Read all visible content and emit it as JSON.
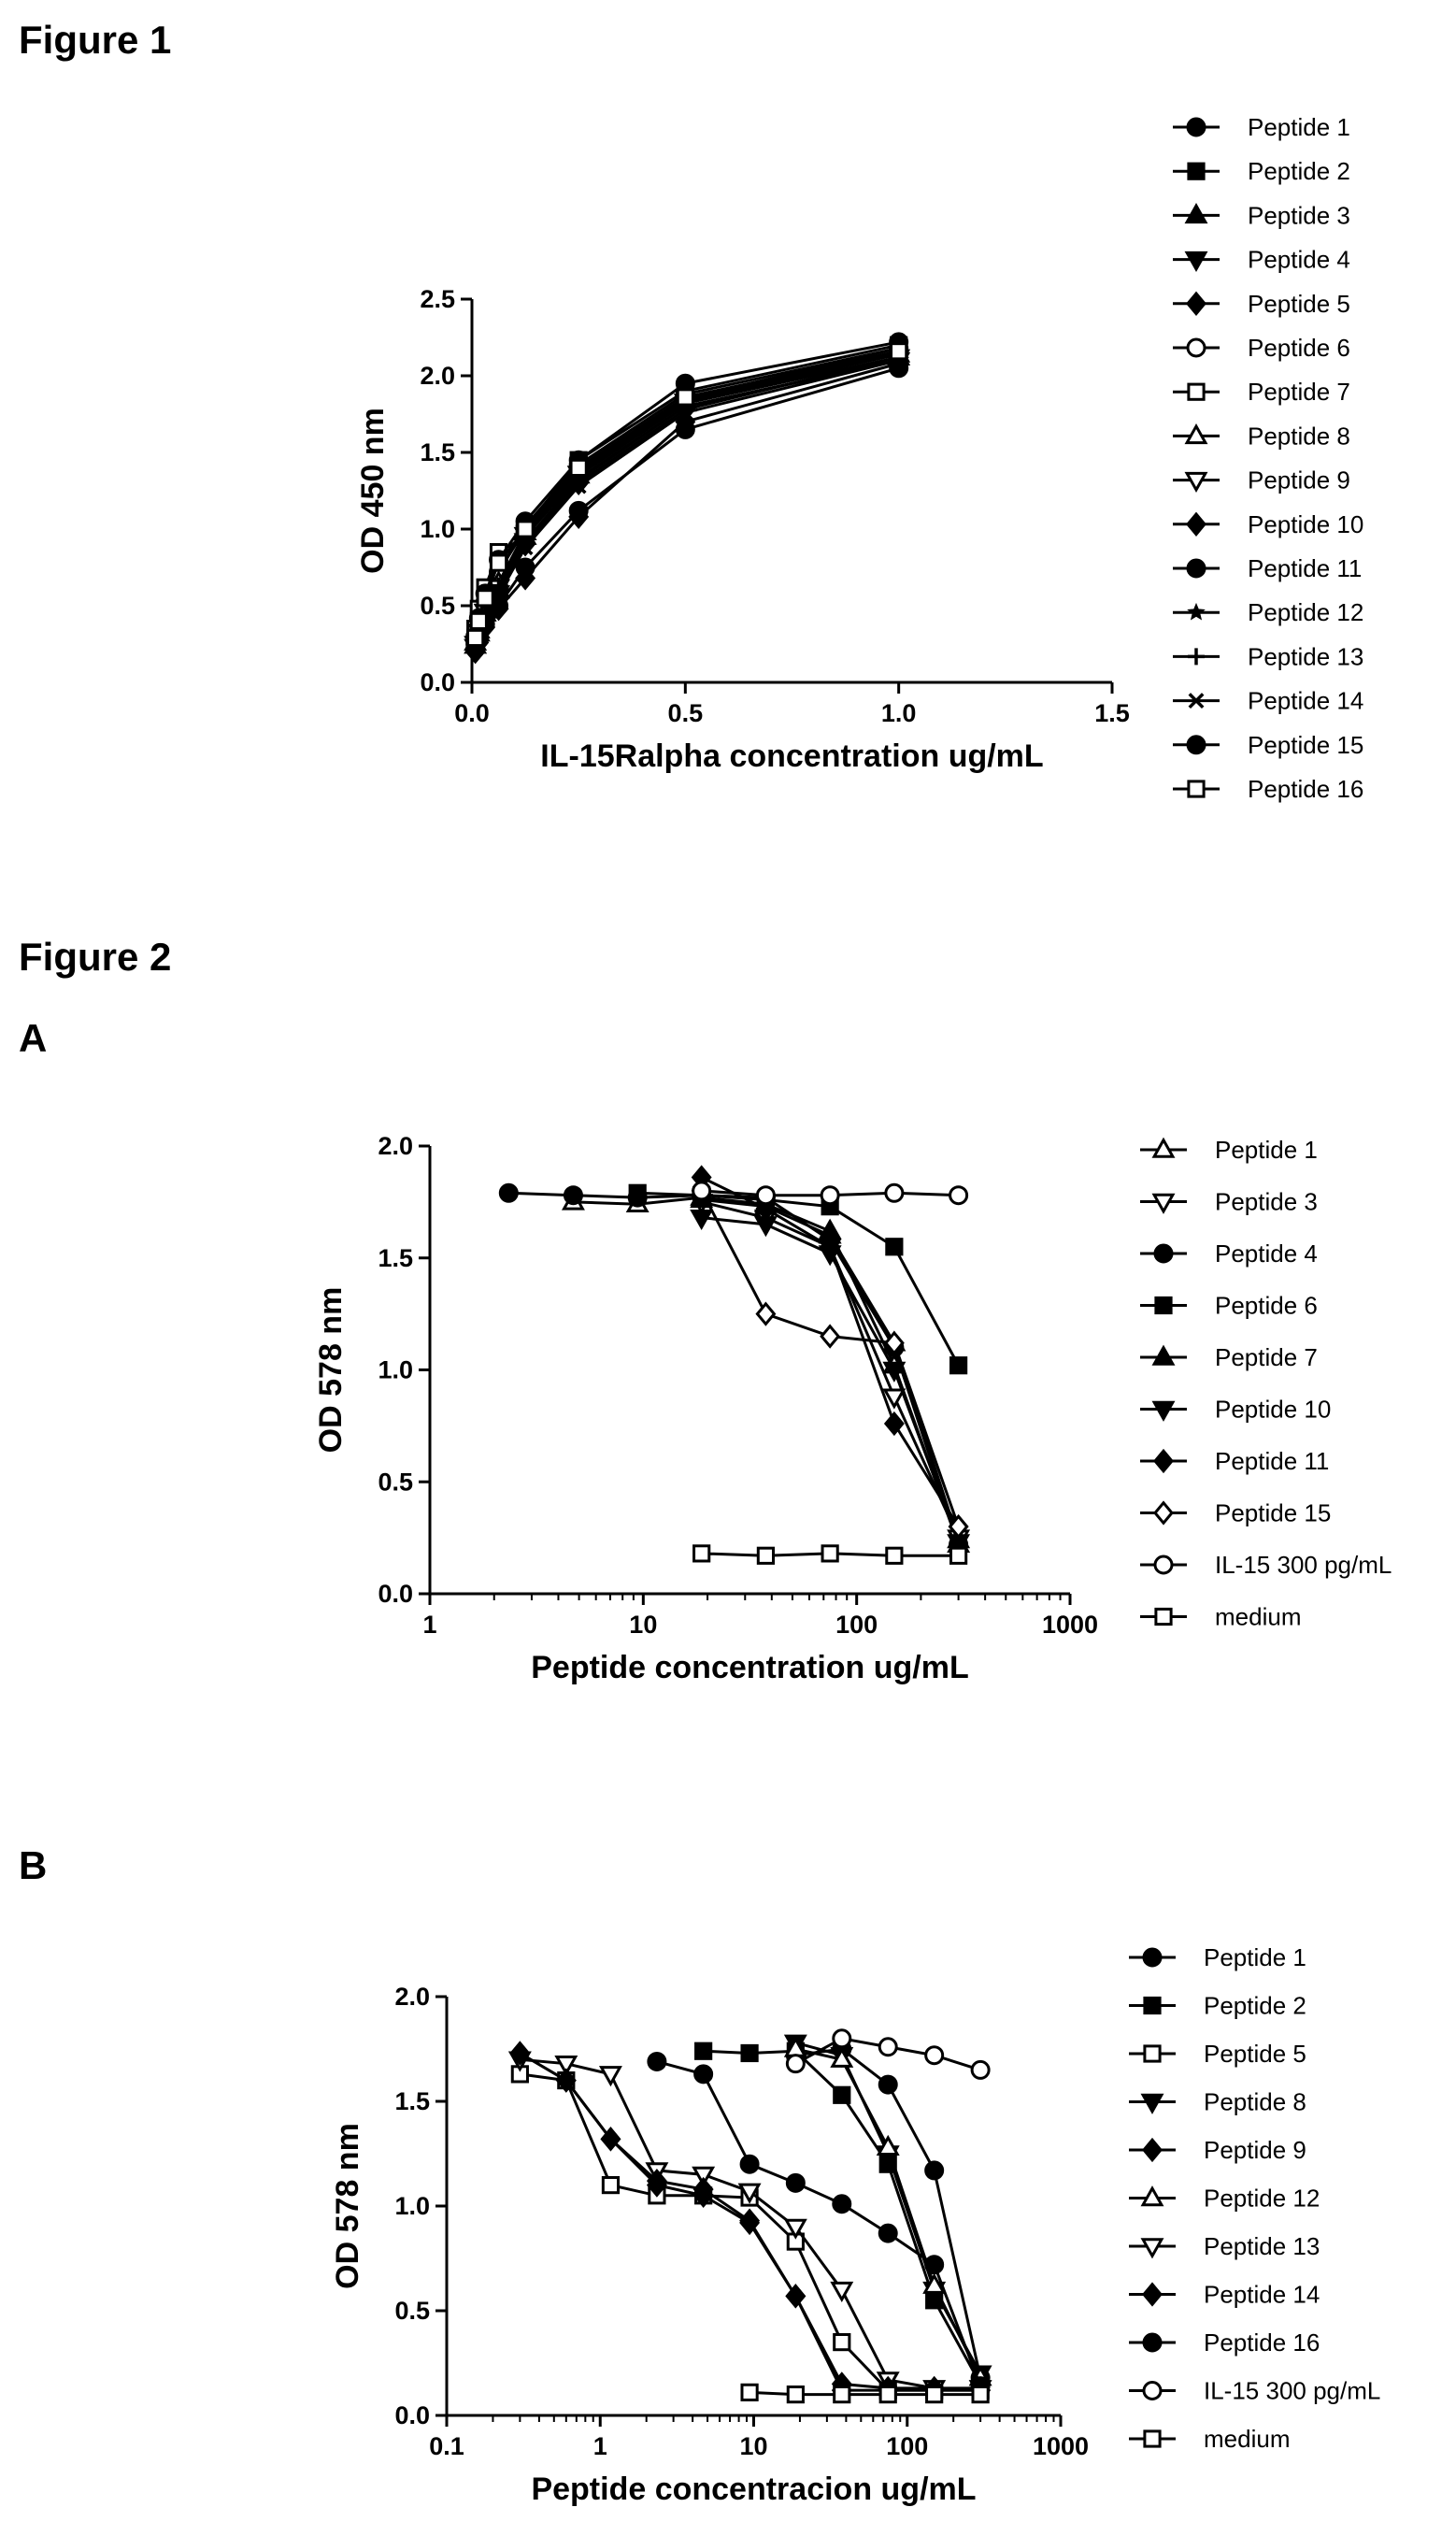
{
  "headings": {
    "figure1": "Figure 1",
    "figure2": "Figure 2",
    "panelA": "A",
    "panelB": "B"
  },
  "chart_data": [
    {
      "id": "figure-1",
      "type": "line",
      "xlabel": "IL-15Ralpha concentration ug/mL",
      "ylabel": "OD 450 nm",
      "xscale": "linear",
      "xlim": [
        0,
        1.5
      ],
      "ylim": [
        0,
        2.5
      ],
      "xticks": [
        0,
        0.5,
        1,
        1.5
      ],
      "xtick_labels": [
        "0.0",
        "0.5",
        "1.0",
        "1.5"
      ],
      "yticks": [
        0,
        0.5,
        1,
        1.5,
        2,
        2.5
      ],
      "ytick_labels": [
        "0.0",
        "0.5",
        "1.0",
        "1.5",
        "2.0",
        "2.5"
      ],
      "grid": false,
      "legend_position": "right",
      "x": [
        0.008,
        0.016,
        0.031,
        0.0625,
        0.125,
        0.25,
        0.5,
        1
      ],
      "series": [
        {
          "name": "Peptide 1",
          "marker": "circle-filled",
          "values": [
            0.25,
            0.33,
            0.45,
            0.62,
            0.98,
            1.38,
            1.85,
            2.15
          ]
        },
        {
          "name": "Peptide 2",
          "marker": "square-filled",
          "values": [
            0.27,
            0.35,
            0.5,
            0.72,
            1.0,
            1.45,
            1.9,
            2.2
          ]
        },
        {
          "name": "Peptide 3",
          "marker": "triangle-up-filled",
          "values": [
            0.24,
            0.32,
            0.45,
            0.6,
            0.95,
            1.35,
            1.82,
            2.12
          ]
        },
        {
          "name": "Peptide 4",
          "marker": "triangle-down-filled",
          "values": [
            0.23,
            0.31,
            0.43,
            0.58,
            0.92,
            1.32,
            1.8,
            2.1
          ]
        },
        {
          "name": "Peptide 5",
          "marker": "diamond-filled",
          "values": [
            0.22,
            0.3,
            0.42,
            0.57,
            0.9,
            1.3,
            1.78,
            2.12
          ]
        },
        {
          "name": "Peptide 6",
          "marker": "circle-open",
          "values": [
            0.28,
            0.38,
            0.52,
            0.72,
            1.02,
            1.42,
            1.88,
            2.18
          ]
        },
        {
          "name": "Peptide 7",
          "marker": "square-open",
          "values": [
            0.35,
            0.48,
            0.62,
            0.85,
            0.95,
            1.38,
            1.85,
            2.18
          ]
        },
        {
          "name": "Peptide 8",
          "marker": "triangle-up-open",
          "values": [
            0.26,
            0.34,
            0.47,
            0.65,
            0.98,
            1.4,
            1.84,
            2.14
          ]
        },
        {
          "name": "Peptide 9",
          "marker": "triangle-down-open",
          "values": [
            0.25,
            0.33,
            0.46,
            0.62,
            0.96,
            1.36,
            1.83,
            2.12
          ]
        },
        {
          "name": "Peptide 10",
          "marker": "diamond-filled",
          "values": [
            0.2,
            0.26,
            0.36,
            0.48,
            0.68,
            1.08,
            1.7,
            2.08
          ]
        },
        {
          "name": "Peptide 11",
          "marker": "circle-filled",
          "values": [
            0.22,
            0.28,
            0.38,
            0.5,
            0.75,
            1.12,
            1.65,
            2.05
          ]
        },
        {
          "name": "Peptide 12",
          "marker": "star",
          "values": [
            0.24,
            0.32,
            0.44,
            0.6,
            0.92,
            1.33,
            1.8,
            2.1
          ]
        },
        {
          "name": "Peptide 13",
          "marker": "plus",
          "values": [
            0.26,
            0.34,
            0.46,
            0.63,
            0.96,
            1.37,
            1.84,
            2.14
          ]
        },
        {
          "name": "Peptide 14",
          "marker": "cross",
          "values": [
            0.23,
            0.31,
            0.42,
            0.57,
            0.88,
            1.28,
            1.76,
            2.1
          ]
        },
        {
          "name": "Peptide 15",
          "marker": "circle-filled",
          "values": [
            0.3,
            0.42,
            0.58,
            0.8,
            1.05,
            1.45,
            1.95,
            2.22
          ]
        },
        {
          "name": "Peptide 16",
          "marker": "square-open",
          "values": [
            0.29,
            0.4,
            0.55,
            0.78,
            1.0,
            1.4,
            1.86,
            2.16
          ]
        }
      ]
    },
    {
      "id": "figure-2a",
      "type": "line",
      "xlabel": "Peptide concentration ug/mL",
      "ylabel": "OD 578 nm",
      "xscale": "log",
      "xlim": [
        1,
        1000
      ],
      "ylim": [
        0,
        2.0
      ],
      "xticks": [
        1,
        10,
        100,
        1000
      ],
      "xtick_labels": [
        "1",
        "10",
        "100",
        "1000"
      ],
      "yticks": [
        0,
        0.5,
        1,
        1.5,
        2
      ],
      "ytick_labels": [
        "0.0",
        "0.5",
        "1.0",
        "1.5",
        "2.0"
      ],
      "grid": false,
      "legend_position": "right",
      "series": [
        {
          "name": "Peptide 1",
          "marker": "triangle-up-open",
          "x": [
            4.7,
            9.4,
            18.75,
            37.5,
            75,
            150,
            300
          ],
          "values": [
            1.75,
            1.74,
            1.77,
            1.74,
            1.62,
            1.02,
            0.22
          ]
        },
        {
          "name": "Peptide 3",
          "marker": "triangle-down-open",
          "x": [
            18.75,
            37.5,
            75,
            150,
            300
          ],
          "values": [
            1.75,
            1.68,
            1.55,
            0.88,
            0.25
          ]
        },
        {
          "name": "Peptide 4",
          "marker": "circle-filled",
          "x": [
            2.34,
            4.7,
            9.4,
            18.75,
            37.5,
            75,
            150,
            300
          ],
          "values": [
            1.79,
            1.78,
            1.77,
            1.78,
            1.77,
            1.58,
            1.1,
            0.22
          ]
        },
        {
          "name": "Peptide 6",
          "marker": "square-filled",
          "x": [
            9.4,
            18.75,
            37.5,
            75,
            150,
            300
          ],
          "values": [
            1.79,
            1.78,
            1.76,
            1.73,
            1.55,
            1.02
          ]
        },
        {
          "name": "Peptide 7",
          "marker": "triangle-up-filled",
          "x": [
            18.75,
            37.5,
            75,
            150,
            300
          ],
          "values": [
            1.76,
            1.73,
            1.6,
            1.12,
            0.24
          ]
        },
        {
          "name": "Peptide 10",
          "marker": "triangle-down-filled",
          "x": [
            18.75,
            37.5,
            75,
            150,
            300
          ],
          "values": [
            1.68,
            1.65,
            1.52,
            1.0,
            0.23
          ]
        },
        {
          "name": "Peptide 11",
          "marker": "diamond-filled",
          "x": [
            18.75,
            37.5,
            75,
            150,
            300
          ],
          "values": [
            1.86,
            1.72,
            1.55,
            0.76,
            0.3
          ]
        },
        {
          "name": "Peptide 15",
          "marker": "diamond-open",
          "x": [
            18.75,
            37.5,
            75,
            150,
            300
          ],
          "values": [
            1.8,
            1.25,
            1.15,
            1.12,
            0.3
          ]
        },
        {
          "name": "IL-15 300 pg/mL",
          "marker": "circle-open",
          "x": [
            18.75,
            37.5,
            75,
            150,
            300
          ],
          "values": [
            1.8,
            1.78,
            1.78,
            1.79,
            1.78
          ]
        },
        {
          "name": "medium",
          "marker": "square-open",
          "x": [
            18.75,
            37.5,
            75,
            150,
            300
          ],
          "values": [
            0.18,
            0.17,
            0.18,
            0.17,
            0.17
          ]
        }
      ]
    },
    {
      "id": "figure-2b",
      "type": "line",
      "xlabel": "Peptide concentracion ug/mL",
      "ylabel": "OD 578 nm",
      "xscale": "log",
      "xlim": [
        0.1,
        1000
      ],
      "ylim": [
        0,
        2.0
      ],
      "xticks": [
        0.1,
        1,
        10,
        100,
        1000
      ],
      "xtick_labels": [
        "0.1",
        "1",
        "10",
        "100",
        "1000"
      ],
      "yticks": [
        0,
        0.5,
        1,
        1.5,
        2
      ],
      "ytick_labels": [
        "0.0",
        "0.5",
        "1.0",
        "1.5",
        "2.0"
      ],
      "grid": false,
      "legend_position": "right",
      "series": [
        {
          "name": "Peptide 1",
          "marker": "circle-filled",
          "x": [
            18.75,
            37.5,
            75,
            150,
            300
          ],
          "values": [
            1.72,
            1.75,
            1.58,
            1.17,
            0.18
          ]
        },
        {
          "name": "Peptide 2",
          "marker": "square-filled",
          "x": [
            4.7,
            9.4,
            18.75,
            37.5,
            75,
            150,
            300
          ],
          "values": [
            1.74,
            1.73,
            1.74,
            1.53,
            1.2,
            0.55,
            0.15
          ]
        },
        {
          "name": "Peptide 5",
          "marker": "square-open",
          "x": [
            0.3,
            0.6,
            1.17,
            2.34,
            4.7,
            9.4,
            18.75,
            37.5,
            75,
            150,
            300
          ],
          "values": [
            1.63,
            1.6,
            1.1,
            1.05,
            1.05,
            1.04,
            0.83,
            0.35,
            0.12,
            0.12,
            0.12
          ]
        },
        {
          "name": "Peptide 8",
          "marker": "triangle-down-filled",
          "x": [
            18.75,
            37.5,
            75,
            150,
            300
          ],
          "values": [
            1.78,
            1.72,
            1.25,
            0.6,
            0.2
          ]
        },
        {
          "name": "Peptide 9",
          "marker": "diamond-filled",
          "x": [
            0.3,
            0.6,
            1.17,
            2.34,
            4.7,
            9.4,
            18.75,
            37.5,
            75,
            150,
            300
          ],
          "values": [
            1.73,
            1.6,
            1.32,
            1.1,
            1.05,
            0.92,
            0.57,
            0.12,
            0.12,
            0.12,
            0.12
          ]
        },
        {
          "name": "Peptide 12",
          "marker": "triangle-up-open",
          "x": [
            18.75,
            37.5,
            75,
            150,
            300
          ],
          "values": [
            1.75,
            1.7,
            1.28,
            0.62,
            0.18
          ]
        },
        {
          "name": "Peptide 13",
          "marker": "triangle-down-open",
          "x": [
            0.3,
            0.6,
            1.17,
            2.34,
            4.7,
            9.4,
            18.75,
            37.5,
            75,
            150,
            300
          ],
          "values": [
            1.7,
            1.68,
            1.63,
            1.17,
            1.15,
            1.07,
            0.9,
            0.6,
            0.17,
            0.13,
            0.13
          ]
        },
        {
          "name": "Peptide 14",
          "marker": "diamond-filled",
          "x": [
            0.3,
            0.6,
            1.17,
            2.34,
            4.7,
            9.4,
            18.75,
            37.5,
            75,
            150,
            300
          ],
          "values": [
            1.73,
            1.6,
            1.32,
            1.12,
            1.08,
            0.93,
            0.57,
            0.15,
            0.13,
            0.13,
            0.12
          ]
        },
        {
          "name": "Peptide 16",
          "marker": "circle-filled",
          "x": [
            2.34,
            4.7,
            9.4,
            18.75,
            37.5,
            75,
            150,
            300
          ],
          "values": [
            1.69,
            1.63,
            1.2,
            1.11,
            1.01,
            0.87,
            0.72,
            0.14
          ]
        },
        {
          "name": "IL-15 300 pg/mL",
          "marker": "circle-open",
          "x": [
            18.75,
            37.5,
            75,
            150,
            300
          ],
          "values": [
            1.68,
            1.8,
            1.76,
            1.72,
            1.65
          ]
        },
        {
          "name": "medium",
          "marker": "square-open",
          "x": [
            9.4,
            18.75,
            37.5,
            75,
            150,
            300
          ],
          "values": [
            0.11,
            0.1,
            0.1,
            0.1,
            0.1,
            0.1
          ]
        }
      ]
    }
  ]
}
